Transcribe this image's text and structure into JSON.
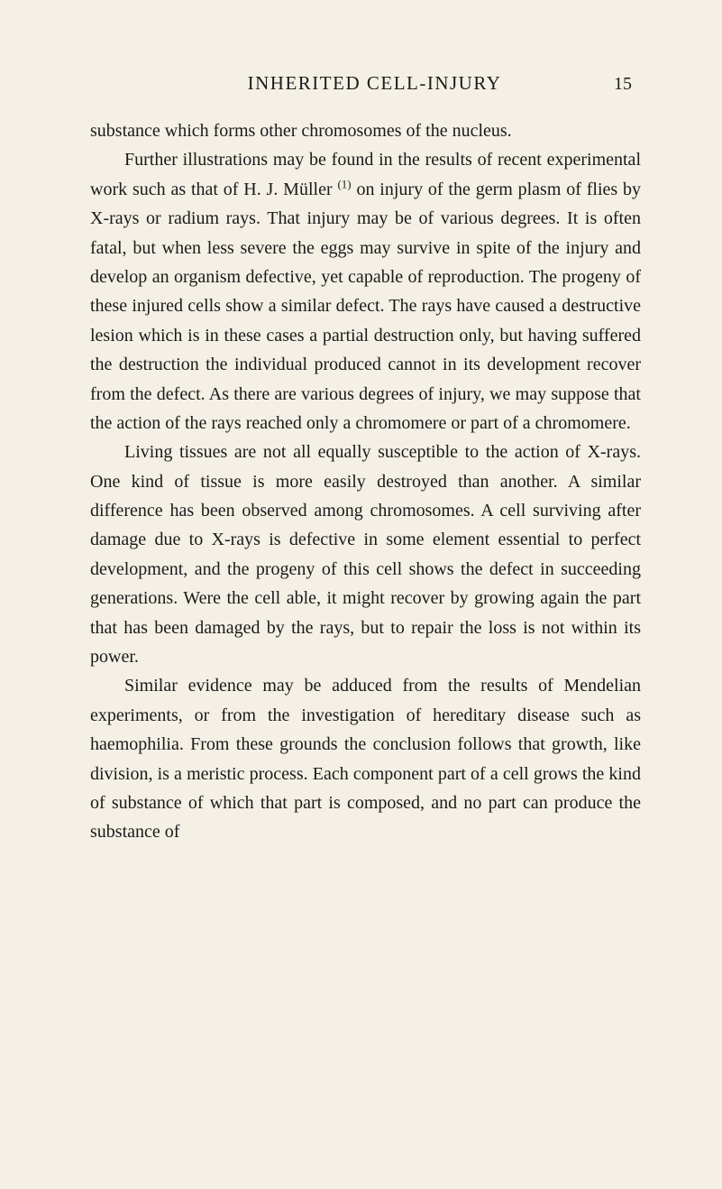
{
  "header": {
    "title": "INHERITED CELL-INJURY",
    "pageNumber": "15"
  },
  "paragraphs": {
    "p1": "substance which forms other chromosomes of the nucleus.",
    "p2_part1": "Further illustrations may be found in the results of recent experimental work such as that of H. J. Müller ",
    "p2_sup": "(1)",
    "p2_part2": " on injury of the germ plasm of flies by X-rays or radium rays. That injury may be of various degrees. It is often fatal, but when less severe the eggs may survive in spite of the injury and develop an organism de­fective, yet capable of reproduction. The progeny of these injured cells show a similar defect. The rays have caused a destructive lesion which is in these cases a partial destruction only, but having suffered the destruction the individual produced cannot in its development recover from the defect. As there are various degrees of injury, we may suppose that the action of the rays reached only a chromomere or part of a chromomere.",
    "p3": "Living tissues are not all equally susceptible to the action of X-rays. One kind of tissue is more easily destroyed than another. A similar difference has been observed among chromosomes. A cell surviving after damage due to X-rays is defective in some element essential to perfect development, and the progeny of this cell shows the defect in succeeding generations. Were the cell able, it might recover by growing again the part that has been damaged by the rays, but to repair the loss is not within its power.",
    "p4": "Similar evidence may be adduced from the results of Mendelian experiments, or from the investigation of hereditary disease such as haemophilia. From these grounds the conclusion follows that growth, like divi­sion, is a meristic process. Each component part of a cell grows the kind of substance of which that part is composed, and no part can produce the substance of"
  },
  "colors": {
    "background": "#f5f0e6",
    "text": "#1a1a1a"
  },
  "typography": {
    "bodyFontSize": 20,
    "titleFontSize": 21,
    "lineHeight": 1.62,
    "titleLetterSpacing": 1.5
  }
}
